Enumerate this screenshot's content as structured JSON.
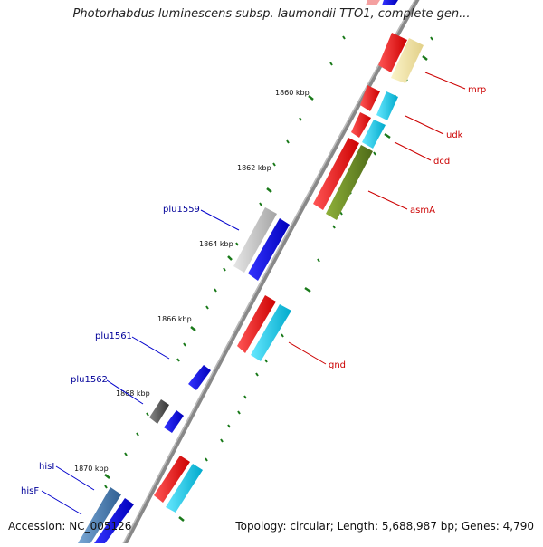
{
  "title": "Photorhabdus luminescens subsp. laumondii TTO1, complete gen...",
  "footer": {
    "accession": "Accession: NC_005126",
    "topology": "Topology: circular; Length: 5,688,987 bp; Genes: 4,790"
  },
  "colors": {
    "background": "#ffffff",
    "backbone": "#888888",
    "tick": "#1a7a1a",
    "label_red": "#cc0000",
    "label_blue": "#000099",
    "cds_red": "#ff0000",
    "cds_blue": "#0000ff",
    "cds_cyan": "#00ccee",
    "cds_lightyellow": "#f2e6a0",
    "cds_olive": "#6b8e23",
    "cds_gray": "#bdbdbd",
    "cds_darkgray": "#555555",
    "cds_steelblue": "#4a7fb5",
    "cds_pink": "#f4a0a0"
  },
  "kbp_ticks": [
    "1860 kbp",
    "1862 kbp",
    "1864 kbp",
    "1866 kbp",
    "1868 kbp",
    "1870 kbp"
  ],
  "gene_labels_right": [
    "mrp",
    "udk",
    "dcd",
    "asmA",
    "gnd"
  ],
  "gene_labels_left": [
    "plu1559",
    "plu1561",
    "plu1562",
    "hisI",
    "hisF"
  ]
}
